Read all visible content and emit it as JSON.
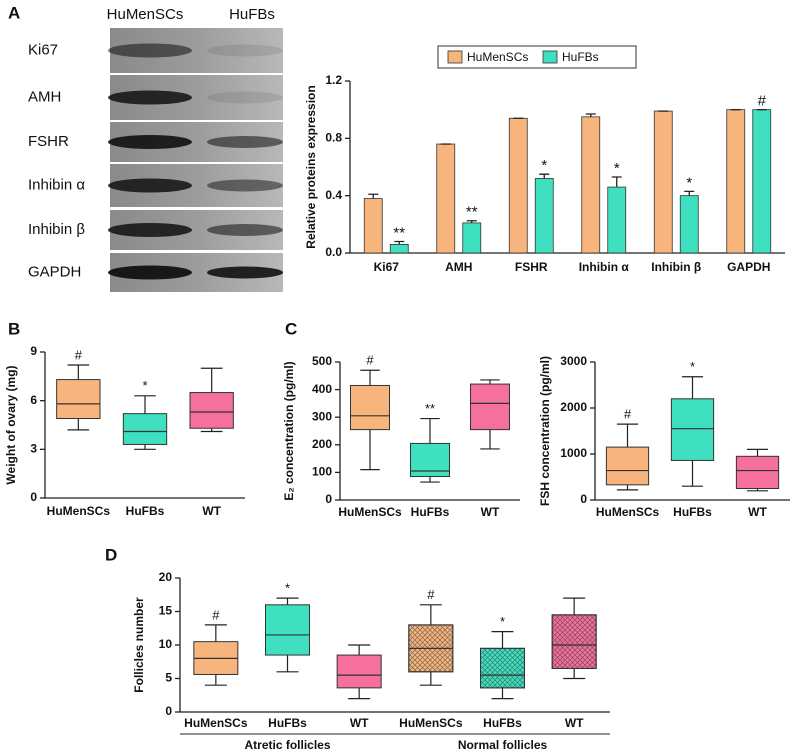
{
  "panel_labels": [
    "A",
    "B",
    "C",
    "D"
  ],
  "blot": {
    "lanes": [
      "HuMenSCs",
      "HuFBs"
    ],
    "rows": [
      "Ki67",
      "AMH",
      "FSHR",
      "Inhibin α",
      "Inhibin β",
      "GAPDH"
    ]
  },
  "chart_data": [
    {
      "type": "bar",
      "ylabel": "Relative proteins expression",
      "categories": [
        "Ki67",
        "AMH",
        "FSHR",
        "Inhibin α",
        "Inhibin β",
        "GAPDH"
      ],
      "series": [
        {
          "name": "HuMenSCs",
          "color": "#f7b57d",
          "values": [
            0.38,
            0.76,
            0.94,
            0.95,
            0.99,
            1.0
          ],
          "errors": [
            0.03,
            0,
            0,
            0.02,
            0,
            0
          ],
          "annotations": [
            null,
            null,
            null,
            null,
            null,
            null
          ]
        },
        {
          "name": "HuFBs",
          "color": "#3ee0bf",
          "values": [
            0.06,
            0.21,
            0.52,
            0.46,
            0.4,
            1.0
          ],
          "errors": [
            0.02,
            0.015,
            0.03,
            0.07,
            0.03,
            0
          ],
          "annotations": [
            "**",
            "**",
            "*",
            "*",
            "*",
            "#"
          ]
        }
      ],
      "ylim": [
        0,
        1.2
      ],
      "yticks": [
        {
          "value": 0,
          "label": "0.0"
        },
        0.4,
        0.8,
        1.2
      ],
      "legend": "top"
    },
    {
      "type": "box",
      "ylabel": "Weight of ovary (mg)",
      "categories": [
        "HuMenSCs",
        "HuFBs",
        "WT"
      ],
      "colors": [
        "#f7b57d",
        "#3ee0bf",
        "#f56f9f"
      ],
      "hatched": [
        false,
        false,
        false
      ],
      "boxes": [
        {
          "min": 4.2,
          "q1": 4.9,
          "median": 5.8,
          "q3": 7.3,
          "max": 8.2
        },
        {
          "min": 3.0,
          "q1": 3.3,
          "median": 4.1,
          "q3": 5.2,
          "max": 6.3
        },
        {
          "min": 4.1,
          "q1": 4.3,
          "median": 5.3,
          "q3": 6.5,
          "max": 8.0
        }
      ],
      "annotations": [
        "#",
        "*",
        null
      ],
      "ylim": [
        0,
        9
      ],
      "yticks": [
        0,
        3,
        6,
        9
      ]
    },
    {
      "type": "box",
      "ylabel": "E₂ concentration (pg/ml)",
      "categories": [
        "HuMenSCs",
        "HuFBs",
        "WT"
      ],
      "colors": [
        "#f7b57d",
        "#3ee0bf",
        "#f56f9f"
      ],
      "hatched": [
        false,
        false,
        false
      ],
      "boxes": [
        {
          "min": 110,
          "q1": 255,
          "median": 305,
          "q3": 415,
          "max": 470
        },
        {
          "min": 65,
          "q1": 85,
          "median": 105,
          "q3": 205,
          "max": 295
        },
        {
          "min": 185,
          "q1": 255,
          "median": 350,
          "q3": 420,
          "max": 435
        }
      ],
      "annotations": [
        "#",
        "**",
        null
      ],
      "ylim": [
        0,
        500
      ],
      "yticks": [
        0,
        100,
        200,
        300,
        400,
        500
      ]
    },
    {
      "type": "box",
      "ylabel": "FSH concentration (pg/ml)",
      "categories": [
        "HuMenSCs",
        "HuFBs",
        "WT"
      ],
      "colors": [
        "#f7b57d",
        "#3ee0bf",
        "#f56f9f"
      ],
      "hatched": [
        false,
        false,
        false
      ],
      "boxes": [
        {
          "min": 220,
          "q1": 330,
          "median": 640,
          "q3": 1150,
          "max": 1650
        },
        {
          "min": 300,
          "q1": 860,
          "median": 1550,
          "q3": 2200,
          "max": 2680
        },
        {
          "min": 200,
          "q1": 250,
          "median": 640,
          "q3": 950,
          "max": 1100
        }
      ],
      "annotations": [
        "#",
        "*",
        null
      ],
      "ylim": [
        0,
        3000
      ],
      "yticks": [
        0,
        1000,
        2000,
        3000
      ]
    },
    {
      "type": "box",
      "ylabel": "Follicles number",
      "categories": [
        "HuMenSCs",
        "HuFBs",
        "WT",
        "HuMenSCs",
        "HuFBs",
        "WT"
      ],
      "x_groups": [
        "Atretic follicles",
        "Normal follicles"
      ],
      "colors": [
        "#f7b57d",
        "#3ee0bf",
        "#f56f9f",
        "#f7b57d",
        "#3ee0bf",
        "#f56f9f"
      ],
      "hatched": [
        false,
        false,
        false,
        true,
        true,
        true
      ],
      "boxes": [
        {
          "min": 4,
          "q1": 5.6,
          "median": 8,
          "q3": 10.5,
          "max": 13
        },
        {
          "min": 6,
          "q1": 8.5,
          "median": 11.5,
          "q3": 16,
          "max": 17
        },
        {
          "min": 2,
          "q1": 3.6,
          "median": 5.5,
          "q3": 8.5,
          "max": 10
        },
        {
          "min": 4,
          "q1": 6,
          "median": 9.5,
          "q3": 13,
          "max": 16
        },
        {
          "min": 2,
          "q1": 3.6,
          "median": 5.5,
          "q3": 9.5,
          "max": 12
        },
        {
          "min": 5,
          "q1": 6.5,
          "median": 10,
          "q3": 14.5,
          "max": 17
        }
      ],
      "annotations": [
        "#",
        "*",
        null,
        "#",
        "*",
        null
      ],
      "ylim": [
        0,
        20
      ],
      "yticks": [
        0,
        5,
        10,
        15,
        20
      ]
    }
  ]
}
